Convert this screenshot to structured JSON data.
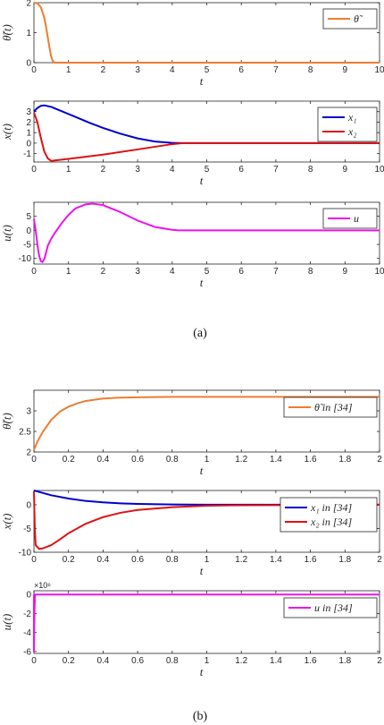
{
  "captions": [
    "(a)",
    "(b)"
  ],
  "chart_data": [
    {
      "type": "line",
      "panel": "a1",
      "xlabel": "t",
      "ylabel": "θ̃(t)",
      "xlim": [
        0,
        10
      ],
      "ylim": [
        0,
        2
      ],
      "xticks": [
        "0",
        "1",
        "2",
        "3",
        "4",
        "5",
        "6",
        "7",
        "8",
        "9",
        "10"
      ],
      "yticks": [
        0,
        1,
        2
      ],
      "ytick_labels": [
        "0",
        "1",
        "2"
      ],
      "legend": "top-right",
      "series": [
        {
          "name": "θ̃",
          "color": "#ed7d31",
          "x": [
            0,
            0.1,
            0.2,
            0.3,
            0.35,
            0.4,
            0.45,
            0.5,
            0.55,
            0.6,
            10
          ],
          "y": [
            2,
            1.98,
            1.85,
            1.5,
            1.2,
            0.85,
            0.5,
            0.2,
            0.05,
            0,
            0
          ]
        }
      ]
    },
    {
      "type": "line",
      "panel": "a2",
      "xlabel": "t",
      "ylabel": "x(t)",
      "xlim": [
        0,
        10
      ],
      "ylim": [
        -1.8,
        4
      ],
      "xticks": [
        "0",
        "1",
        "2",
        "3",
        "4",
        "5",
        "6",
        "7",
        "8",
        "9",
        "10"
      ],
      "yticks": [
        -1,
        0,
        1,
        2,
        3
      ],
      "ytick_labels": [
        "-1",
        "0",
        "1",
        "2",
        "3"
      ],
      "legend": "top-right",
      "series": [
        {
          "name": "x₁",
          "color": "#0000cc",
          "x": [
            0,
            0.1,
            0.2,
            0.3,
            0.5,
            0.8,
            1.2,
            1.6,
            2,
            2.5,
            3,
            3.5,
            4,
            4.3,
            10
          ],
          "y": [
            3,
            3.35,
            3.55,
            3.6,
            3.45,
            3.05,
            2.5,
            1.95,
            1.45,
            0.9,
            0.45,
            0.15,
            0.02,
            0,
            0
          ]
        },
        {
          "name": "x₂",
          "color": "#dd1111",
          "x": [
            0,
            0.1,
            0.2,
            0.3,
            0.4,
            0.5,
            0.6,
            1,
            2,
            3,
            4,
            4.3,
            10
          ],
          "y": [
            2.9,
            2.0,
            0.5,
            -0.8,
            -1.45,
            -1.7,
            -1.65,
            -1.5,
            -1.1,
            -0.6,
            -0.1,
            0,
            0
          ]
        }
      ]
    },
    {
      "type": "line",
      "panel": "a3",
      "xlabel": "t",
      "ylabel": "u(t)",
      "xlim": [
        0,
        10
      ],
      "ylim": [
        -12,
        10
      ],
      "xticks": [
        "0",
        "1",
        "2",
        "3",
        "4",
        "5",
        "6",
        "7",
        "8",
        "9",
        "10"
      ],
      "yticks": [
        -10,
        -5,
        0,
        5
      ],
      "ytick_labels": [
        "-10",
        "-5",
        "0",
        "5"
      ],
      "legend": "top-right",
      "series": [
        {
          "name": "u",
          "color": "#ee11ee",
          "x": [
            0,
            0.05,
            0.1,
            0.15,
            0.2,
            0.25,
            0.3,
            0.35,
            0.4,
            0.5,
            0.6,
            0.8,
            1.0,
            1.2,
            1.5,
            1.7,
            2.0,
            2.5,
            3.0,
            3.5,
            4.0,
            4.2,
            10
          ],
          "y": [
            4,
            0,
            -5,
            -9,
            -11,
            -11.3,
            -10.2,
            -8,
            -5.5,
            -3,
            -1,
            2.5,
            5.5,
            7.8,
            9.3,
            9.5,
            9.0,
            6.5,
            3.5,
            1.2,
            0.2,
            0,
            0
          ]
        }
      ]
    },
    {
      "type": "line",
      "panel": "b1",
      "xlabel": "t",
      "ylabel": "θ̃(t)",
      "xlim": [
        0,
        2
      ],
      "ylim": [
        2,
        3.5
      ],
      "xticks": [
        "0",
        "0.2",
        "0.4",
        "0.6",
        "0.8",
        "1",
        "1.2",
        "1.4",
        "1.6",
        "1.8",
        "2"
      ],
      "yticks": [
        2,
        2.5,
        3
      ],
      "ytick_labels": [
        "2",
        "2.5",
        "3"
      ],
      "legend": "top-right",
      "series": [
        {
          "name": "θ̃ in [34]",
          "color": "#ed7d31",
          "x": [
            0,
            0.02,
            0.05,
            0.1,
            0.15,
            0.2,
            0.25,
            0.3,
            0.4,
            0.5,
            0.6,
            0.8,
            1.0,
            2.0
          ],
          "y": [
            2.05,
            2.25,
            2.48,
            2.78,
            2.98,
            3.1,
            3.18,
            3.24,
            3.3,
            3.32,
            3.33,
            3.34,
            3.34,
            3.34
          ]
        }
      ]
    },
    {
      "type": "line",
      "panel": "b2",
      "xlabel": "t",
      "ylabel": "x(t)",
      "xlim": [
        0,
        2
      ],
      "ylim": [
        -10,
        3
      ],
      "xticks": [
        "0",
        "0.2",
        "0.4",
        "0.6",
        "0.8",
        "1",
        "1.2",
        "1.4",
        "1.6",
        "1.8",
        "2"
      ],
      "yticks": [
        -10,
        -5,
        0
      ],
      "ytick_labels": [
        "-10",
        "-5",
        "0"
      ],
      "legend": "top-right",
      "series": [
        {
          "name": "x₁ in [34]",
          "color": "#0000cc",
          "x": [
            0,
            0.02,
            0.1,
            0.2,
            0.3,
            0.4,
            0.5,
            0.6,
            0.8,
            1.0,
            2.0
          ],
          "y": [
            3,
            2.8,
            2.0,
            1.3,
            0.8,
            0.5,
            0.3,
            0.18,
            0.06,
            0.02,
            0
          ]
        },
        {
          "name": "x₂ in [34]",
          "color": "#dd1111",
          "x": [
            0,
            0.005,
            0.01,
            0.03,
            0.05,
            0.1,
            0.15,
            0.2,
            0.3,
            0.4,
            0.5,
            0.6,
            0.8,
            1.0,
            1.2,
            2.0
          ],
          "y": [
            2.8,
            -5,
            -8.5,
            -9.3,
            -9.2,
            -8.5,
            -7.3,
            -6,
            -4,
            -2.6,
            -1.7,
            -1.1,
            -0.5,
            -0.2,
            -0.1,
            0
          ]
        }
      ]
    },
    {
      "type": "line",
      "panel": "b3",
      "xlabel": "t",
      "ylabel": "u(t)",
      "xlim": [
        0,
        2
      ],
      "ylim": [
        -6.2,
        0.4
      ],
      "xticks": [
        "0",
        "0.2",
        "0.4",
        "0.6",
        "0.8",
        "1",
        "1.2",
        "1.4",
        "1.6",
        "1.8",
        "2"
      ],
      "yticks": [
        -6,
        -4,
        -2,
        0
      ],
      "ytick_labels": [
        "-6",
        "-4",
        "-2",
        "0"
      ],
      "exponent": "×10⁶",
      "legend": "top-right",
      "series": [
        {
          "name": "u in [34]",
          "color": "#ee11ee",
          "x": [
            0,
            0,
            0.003,
            0.006,
            2.0
          ],
          "y": [
            0,
            -6,
            -2,
            0,
            0
          ]
        }
      ]
    }
  ]
}
